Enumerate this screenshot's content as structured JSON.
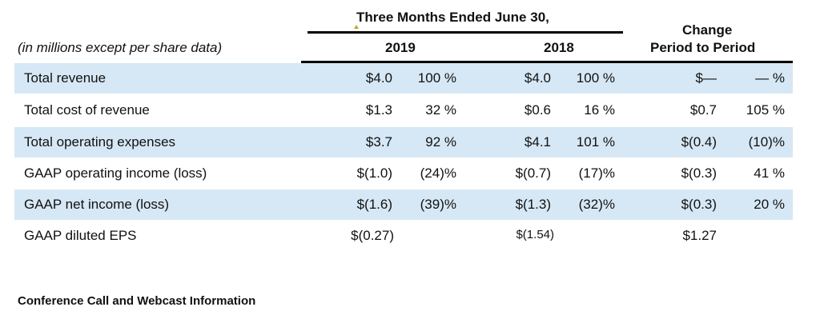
{
  "header": {
    "period_group": "Three Months Ended June 30,",
    "col_2019": "2019",
    "col_2018": "2018",
    "change_line1": "Change",
    "change_line2": "Period to Period",
    "units_note": "(in millions except per share data)"
  },
  "rows": [
    {
      "label": "Total revenue",
      "v2019": "$4.0",
      "p2019": "100 %",
      "v2018": "$4.0",
      "p2018": "100 %",
      "chg": "$—",
      "chg_pct": "— %",
      "shaded": true
    },
    {
      "label": "Total cost of revenue",
      "v2019": "$1.3",
      "p2019": "32 %",
      "v2018": "$0.6",
      "p2018": "16 %",
      "chg": "$0.7",
      "chg_pct": "105 %",
      "shaded": false
    },
    {
      "label": "Total operating expenses",
      "v2019": "$3.7",
      "p2019": "92 %",
      "v2018": "$4.1",
      "p2018": "101 %",
      "chg": "$(0.4)",
      "chg_pct": "(10)%",
      "shaded": true
    },
    {
      "label": "GAAP operating income (loss)",
      "v2019": "$(1.0)",
      "p2019": "(24)%",
      "v2018": "$(0.7)",
      "p2018": "(17)%",
      "chg": "$(0.3)",
      "chg_pct": "41 %",
      "shaded": false
    },
    {
      "label": "GAAP net income (loss)",
      "v2019": "$(1.6)",
      "p2019": "(39)%",
      "v2018": "$(1.3)",
      "p2018": "(32)%",
      "chg": "$(0.3)",
      "chg_pct": "20 %",
      "shaded": true
    },
    {
      "label": "GAAP diluted EPS",
      "v2019": "$(0.27)",
      "p2019": "",
      "v2018": "$(1.54)",
      "p2018": "",
      "chg": "$1.27",
      "chg_pct": "",
      "shaded": false
    }
  ],
  "footer": {
    "section_heading": "Conference Call and Webcast Information"
  }
}
